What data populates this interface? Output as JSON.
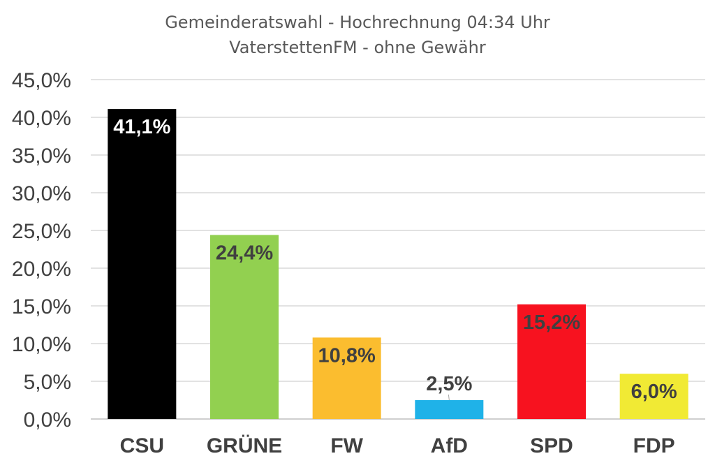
{
  "chart_data": {
    "type": "bar",
    "title": "Gemeinderatswahl - Hochrechnung 04:34 Uhr",
    "subtitle": "VaterstettenFM - ohne Gewähr",
    "categories": [
      "CSU",
      "GRÜNE",
      "FW",
      "AfD",
      "SPD",
      "FDP"
    ],
    "values": [
      41.1,
      24.4,
      10.8,
      2.5,
      15.2,
      6.0
    ],
    "data_labels": [
      "41,1%",
      "24,4%",
      "10,8%",
      "2,5%",
      "15,2%",
      "6,0%"
    ],
    "colors": [
      "#000000",
      "#92d050",
      "#fbbd2f",
      "#1fb2e8",
      "#f7121f",
      "#f1ea34"
    ],
    "label_colors": [
      "#ffffff",
      "#404040",
      "#404040",
      "#404040",
      "#404040",
      "#404040"
    ],
    "label_position": [
      "inside-top",
      "inside-top",
      "inside-top",
      "outside-top",
      "inside-top",
      "inside-top"
    ],
    "ylim": [
      0,
      45
    ],
    "yticks": [
      0,
      5,
      10,
      15,
      20,
      25,
      30,
      35,
      40,
      45
    ],
    "ytick_labels": [
      "0,0%",
      "5,0%",
      "10,0%",
      "15,0%",
      "20,0%",
      "25,0%",
      "30,0%",
      "35,0%",
      "40,0%",
      "45,0%"
    ],
    "grid": true,
    "legend": "none",
    "xlabel": "",
    "ylabel": ""
  }
}
